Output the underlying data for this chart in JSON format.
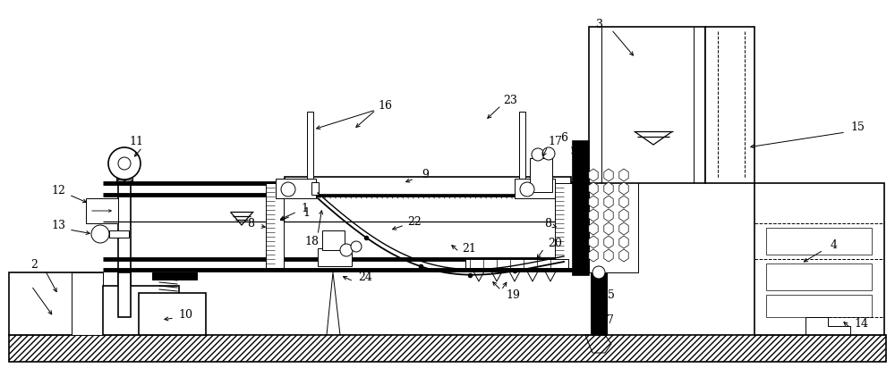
{
  "bg_color": "#ffffff",
  "line_color": "#000000",
  "lw": 1.2,
  "thin": 0.7,
  "fs": 9
}
